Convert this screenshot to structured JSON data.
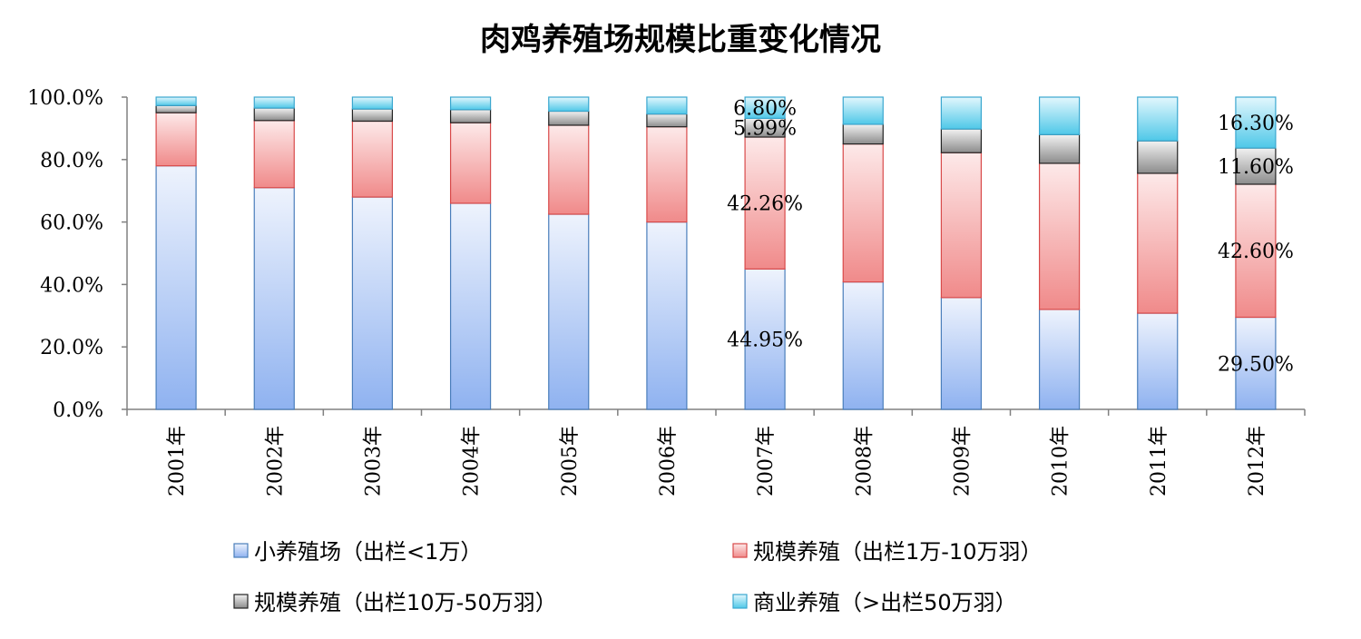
{
  "chart_data": {
    "type": "bar",
    "stacked": true,
    "percent": true,
    "title": "肉鸡养殖场规模比重变化情况",
    "categories": [
      "2001年",
      "2002年",
      "2003年",
      "2004年",
      "2005年",
      "2006年",
      "2007年",
      "2008年",
      "2009年",
      "2010年",
      "2011年",
      "2012年"
    ],
    "ylim": [
      0,
      100
    ],
    "y_ticks": [
      "0.0%",
      "20.0%",
      "40.0%",
      "60.0%",
      "80.0%",
      "100.0%"
    ],
    "series": [
      {
        "name": "小养殖场（出栏<1万）",
        "color": "#8fb2f0",
        "values": [
          78.0,
          71.0,
          68.0,
          66.0,
          62.5,
          60.0,
          44.95,
          40.8,
          35.8,
          32.0,
          30.8,
          29.5
        ]
      },
      {
        "name": "规模养殖（出栏1万-10万羽）",
        "color": "#f08a8a",
        "values": [
          17.0,
          21.5,
          24.3,
          25.8,
          28.5,
          30.5,
          42.26,
          44.2,
          46.4,
          46.8,
          44.8,
          42.6
        ]
      },
      {
        "name": "规模养殖（出栏10万-50万羽）",
        "color": "#8c8c8c",
        "values": [
          2.3,
          4.0,
          3.9,
          4.2,
          4.5,
          4.1,
          5.99,
          6.3,
          7.6,
          9.2,
          10.4,
          11.6
        ]
      },
      {
        "name": "商业养殖（>出栏50万羽）",
        "color": "#4fc8e8",
        "values": [
          2.7,
          3.5,
          3.8,
          4.0,
          4.5,
          5.4,
          6.8,
          8.7,
          10.2,
          12.0,
          14.0,
          16.3
        ]
      }
    ],
    "data_labels": [
      {
        "category_index": 6,
        "series_index": 0,
        "text": "44.95%"
      },
      {
        "category_index": 6,
        "series_index": 1,
        "text": "42.26%"
      },
      {
        "category_index": 6,
        "series_index": 2,
        "text": "5.99%"
      },
      {
        "category_index": 6,
        "series_index": 3,
        "text": "6.80%"
      },
      {
        "category_index": 11,
        "series_index": 0,
        "text": "29.50%"
      },
      {
        "category_index": 11,
        "series_index": 1,
        "text": "42.60%"
      },
      {
        "category_index": 11,
        "series_index": 2,
        "text": "11.60%"
      },
      {
        "category_index": 11,
        "series_index": 3,
        "text": "16.30%"
      }
    ],
    "legend_position": "bottom"
  }
}
